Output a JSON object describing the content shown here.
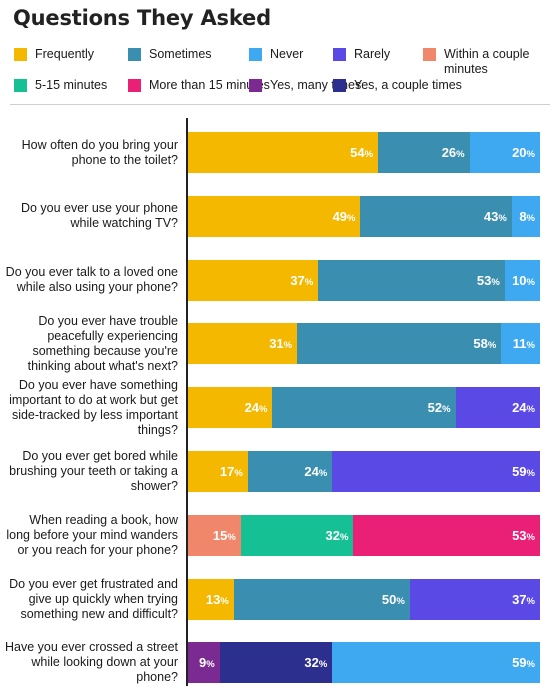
{
  "chart_data": {
    "type": "bar",
    "orientation": "horizontal",
    "stacked": true,
    "title": "Questions They Asked",
    "xlim": [
      0,
      100
    ],
    "legend": [
      {
        "key": "frequently",
        "label": "Frequently",
        "color": "#f5b800"
      },
      {
        "key": "sometimes",
        "label": "Sometimes",
        "color": "#3a8fb0"
      },
      {
        "key": "never",
        "label": "Never",
        "color": "#3ea9f0"
      },
      {
        "key": "rarely",
        "label": "Rarely",
        "color": "#5b49e6"
      },
      {
        "key": "within",
        "label": "Within a couple minutes",
        "color": "#f0876a"
      },
      {
        "key": "5to15",
        "label": "5-15 minutes",
        "color": "#16c095"
      },
      {
        "key": "over15",
        "label": "More than 15 minutes",
        "color": "#ea1f76"
      },
      {
        "key": "yesmany",
        "label": "Yes, many times",
        "color": "#7a2a90"
      },
      {
        "key": "yescouple",
        "label": "Yes, a couple times",
        "color": "#2d2f8e"
      }
    ],
    "rows": [
      {
        "question": "How often do you bring your phone to the toilet?",
        "segments": [
          {
            "key": "frequently",
            "value": 54
          },
          {
            "key": "sometimes",
            "value": 26
          },
          {
            "key": "never",
            "value": 20
          }
        ]
      },
      {
        "question": "Do you ever use your phone while watching TV?",
        "segments": [
          {
            "key": "frequently",
            "value": 49
          },
          {
            "key": "sometimes",
            "value": 43
          },
          {
            "key": "never",
            "value": 8
          }
        ]
      },
      {
        "question": "Do you ever talk to a loved one while also using your phone?",
        "segments": [
          {
            "key": "frequently",
            "value": 37
          },
          {
            "key": "sometimes",
            "value": 53
          },
          {
            "key": "never",
            "value": 10
          }
        ]
      },
      {
        "question": "Do you ever have trouble peacefully experiencing something because you're thinking about what's next?",
        "segments": [
          {
            "key": "frequently",
            "value": 31
          },
          {
            "key": "sometimes",
            "value": 58
          },
          {
            "key": "never",
            "value": 11
          }
        ]
      },
      {
        "question": "Do you ever have something important to do at work but get side-tracked by less important things?",
        "segments": [
          {
            "key": "frequently",
            "value": 24
          },
          {
            "key": "sometimes",
            "value": 52
          },
          {
            "key": "rarely",
            "value": 24
          }
        ]
      },
      {
        "question": "Do you ever get bored while brushing your teeth or taking a shower?",
        "segments": [
          {
            "key": "frequently",
            "value": 17
          },
          {
            "key": "sometimes",
            "value": 24
          },
          {
            "key": "rarely",
            "value": 59
          }
        ]
      },
      {
        "question": "When reading a book, how long before your mind wanders or you reach for your phone?",
        "segments": [
          {
            "key": "within",
            "value": 15
          },
          {
            "key": "5to15",
            "value": 32
          },
          {
            "key": "over15",
            "value": 53
          }
        ]
      },
      {
        "question": "Do you ever get frustrated and give up quickly when trying something new and difficult?",
        "segments": [
          {
            "key": "frequently",
            "value": 13
          },
          {
            "key": "sometimes",
            "value": 50
          },
          {
            "key": "rarely",
            "value": 37
          }
        ]
      },
      {
        "question": "Have you ever crossed a street while looking down at your phone?",
        "segments": [
          {
            "key": "yesmany",
            "value": 9
          },
          {
            "key": "yescouple",
            "value": 32
          },
          {
            "key": "never",
            "value": 59
          }
        ]
      }
    ]
  }
}
